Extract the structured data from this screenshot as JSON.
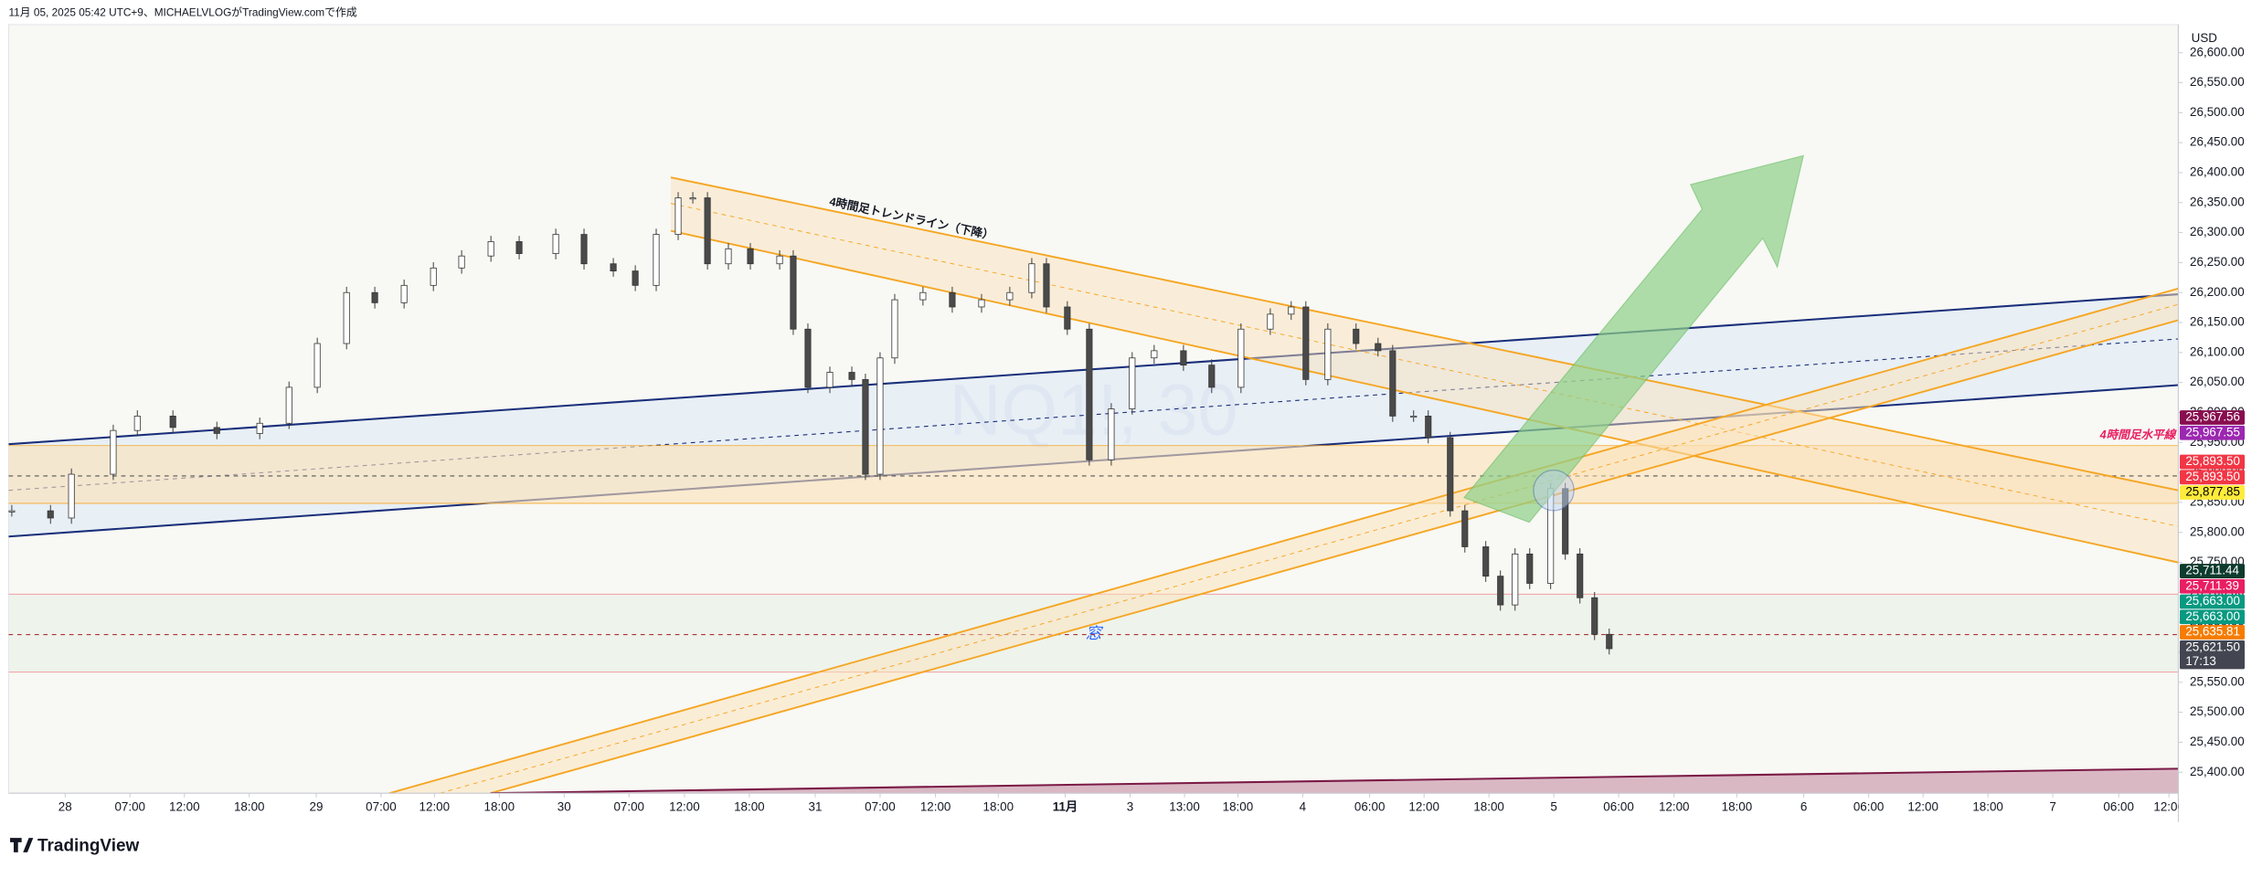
{
  "header": "11月 05, 2025 05:42 UTC+9、MICHAELVLOGがTradingView.comで作成",
  "chart_data": {
    "type": "candlestick",
    "symbol_watermark": "NQ1!, 30",
    "currency": "USD",
    "x": [
      0.3,
      4,
      6,
      10,
      12.3,
      15.7,
      19.9,
      24,
      26.8,
      29.5,
      32.3,
      35,
      37.8,
      40.6,
      43.3,
      46.1,
      48.8,
      52.3,
      55,
      57.8,
      59.9,
      61.9,
      64,
      65.4,
      66.8,
      68.8,
      70.9,
      73.7,
      75,
      76.4,
      78.5,
      80.6,
      81.9,
      83.3,
      84.7,
      87.4,
      90.2,
      93,
      95.7,
      97.8,
      99.2,
      101.2,
      103.3,
      105.4,
      107.4,
      109.5,
      112.3,
      115,
      117.8,
      120.6,
      122.6,
      124,
      126.1,
      128.8,
      130.9,
      132.3,
      134.3,
      135.7,
      137.8,
      139.2,
      141.2,
      142.6,
      144,
      145.4,
      147.4,
      148.8,
      150.2,
      151.6,
      153
    ],
    "close": [
      25836,
      25824,
      25897,
      25970,
      25994,
      25975,
      25965,
      25982,
      26042,
      26115,
      26200,
      26183,
      26212,
      26241,
      26261,
      26285,
      26265,
      26297,
      26248,
      26236,
      26212,
      26297,
      26358,
      26358,
      26248,
      26273,
      26248,
      26261,
      26139,
      26042,
      26067,
      26055,
      25897,
      26091,
      26188,
      26200,
      26176,
      26188,
      26200,
      26248,
      26176,
      26139,
      25921,
      26006,
      26091,
      26103,
      26079,
      26042,
      26139,
      26164,
      26176,
      26055,
      26139,
      26115,
      26103,
      25994,
      25994,
      25958,
      25836,
      25776,
      25727,
      25679,
      25764,
      25715,
      25873,
      25764,
      25691,
      25630,
      25606
    ],
    "xlim": [
      0,
      207.4
    ],
    "xticks": [
      {
        "value": 5.4,
        "label": "28"
      },
      {
        "value": 11.6,
        "label": "07:00"
      },
      {
        "value": 16.8,
        "label": "12:00"
      },
      {
        "value": 23,
        "label": "18:00"
      },
      {
        "value": 29.4,
        "label": "29"
      },
      {
        "value": 35.6,
        "label": "07:00"
      },
      {
        "value": 40.7,
        "label": "12:00"
      },
      {
        "value": 46.9,
        "label": "18:00"
      },
      {
        "value": 53.1,
        "label": "30"
      },
      {
        "value": 59.3,
        "label": "07:00"
      },
      {
        "value": 64.6,
        "label": "12:00"
      },
      {
        "value": 70.8,
        "label": "18:00"
      },
      {
        "value": 77.1,
        "label": "31"
      },
      {
        "value": 83.3,
        "label": "07:00"
      },
      {
        "value": 88.6,
        "label": "12:00"
      },
      {
        "value": 94.6,
        "label": "18:00"
      },
      {
        "value": 101,
        "label": "11月"
      },
      {
        "value": 107.2,
        "label": "3"
      },
      {
        "value": 112.4,
        "label": "13:00"
      },
      {
        "value": 117.5,
        "label": "18:00"
      },
      {
        "value": 123.7,
        "label": "4"
      },
      {
        "value": 130.1,
        "label": "06:00"
      },
      {
        "value": 135.3,
        "label": "12:00"
      },
      {
        "value": 141.5,
        "label": "18:00"
      },
      {
        "value": 147.7,
        "label": "5"
      },
      {
        "value": 153.9,
        "label": "06:00"
      },
      {
        "value": 159.2,
        "label": "12:00"
      },
      {
        "value": 165.2,
        "label": "18:00"
      },
      {
        "value": 171.6,
        "label": "6"
      },
      {
        "value": 177.8,
        "label": "06:00"
      },
      {
        "value": 183,
        "label": "12:00"
      },
      {
        "value": 189.2,
        "label": "18:00"
      },
      {
        "value": 195.4,
        "label": "7"
      },
      {
        "value": 201.7,
        "label": "06:00"
      },
      {
        "value": 206.5,
        "label": "12:00"
      }
    ],
    "ylim": [
      25365,
      26647
    ],
    "yticks": [
      {
        "value": 25400,
        "label": "25,400.00"
      },
      {
        "value": 25450,
        "label": "25,450.00"
      },
      {
        "value": 25500,
        "label": "25,500.00"
      },
      {
        "value": 25550,
        "label": "25,550.00"
      },
      {
        "value": 25600,
        "label": "25,600.00"
      },
      {
        "value": 25650,
        "label": "25,650.00"
      },
      {
        "value": 25700,
        "label": "25,700.00"
      },
      {
        "value": 25750,
        "label": "25,750.00"
      },
      {
        "value": 25800,
        "label": "25,800.00"
      },
      {
        "value": 25850,
        "label": "25,850.00"
      },
      {
        "value": 25900,
        "label": "25,900.00"
      },
      {
        "value": 25950,
        "label": "25,950.00"
      },
      {
        "value": 26000,
        "label": "26,000.00"
      },
      {
        "value": 26050,
        "label": "26,050.00"
      },
      {
        "value": 26100,
        "label": "26,100.00"
      },
      {
        "value": 26150,
        "label": "26,150.00"
      },
      {
        "value": 26200,
        "label": "26,200.00"
      },
      {
        "value": 26250,
        "label": "26,250.00"
      },
      {
        "value": 26300,
        "label": "26,300.00"
      },
      {
        "value": 26350,
        "label": "26,350.00"
      },
      {
        "value": 26400,
        "label": "26,400.00"
      },
      {
        "value": 26450,
        "label": "26,450.00"
      },
      {
        "value": 26500,
        "label": "26,500.00"
      },
      {
        "value": 26550,
        "label": "26,550.00"
      },
      {
        "value": 26600,
        "label": "26,600.00"
      }
    ],
    "price_labels": [
      {
        "value": 25967.56,
        "label": "25,967.56",
        "color": "#880e4f"
      },
      {
        "value": 25967.55,
        "label": "25,967.55",
        "color": "#9c27b0"
      },
      {
        "value": 25893.5,
        "label": "25,893.50",
        "color": "#f23645"
      },
      {
        "value": 25893.5,
        "label": "25,893.50",
        "color": "#f23645"
      },
      {
        "value": 25877.85,
        "label": "25,877.85",
        "color": "#ffeb3b",
        "text_color": "#000000"
      },
      {
        "value": 25711.44,
        "label": "25,711.44",
        "color": "#0d3b2e"
      },
      {
        "value": 25711.39,
        "label": "25,711.39",
        "color": "#e91e63"
      },
      {
        "value": 25663,
        "label": "25,663.00",
        "color": "#089981"
      },
      {
        "value": 25663,
        "label": "25,663.00",
        "color": "#089981"
      },
      {
        "value": 25635.81,
        "label": "25,635.81",
        "color": "#f57c00"
      },
      {
        "value": 25621.5,
        "label": "25,621.50",
        "color": "#434651",
        "countdown": "17:13"
      }
    ],
    "annotations": {
      "trendline": "4時間足トレンドライン（下降）",
      "horizontal": "4時間足水平線",
      "gap": "窓"
    },
    "up_color": "#ffffff",
    "down_color": "#4a4a4a"
  },
  "footer": "TradingView"
}
